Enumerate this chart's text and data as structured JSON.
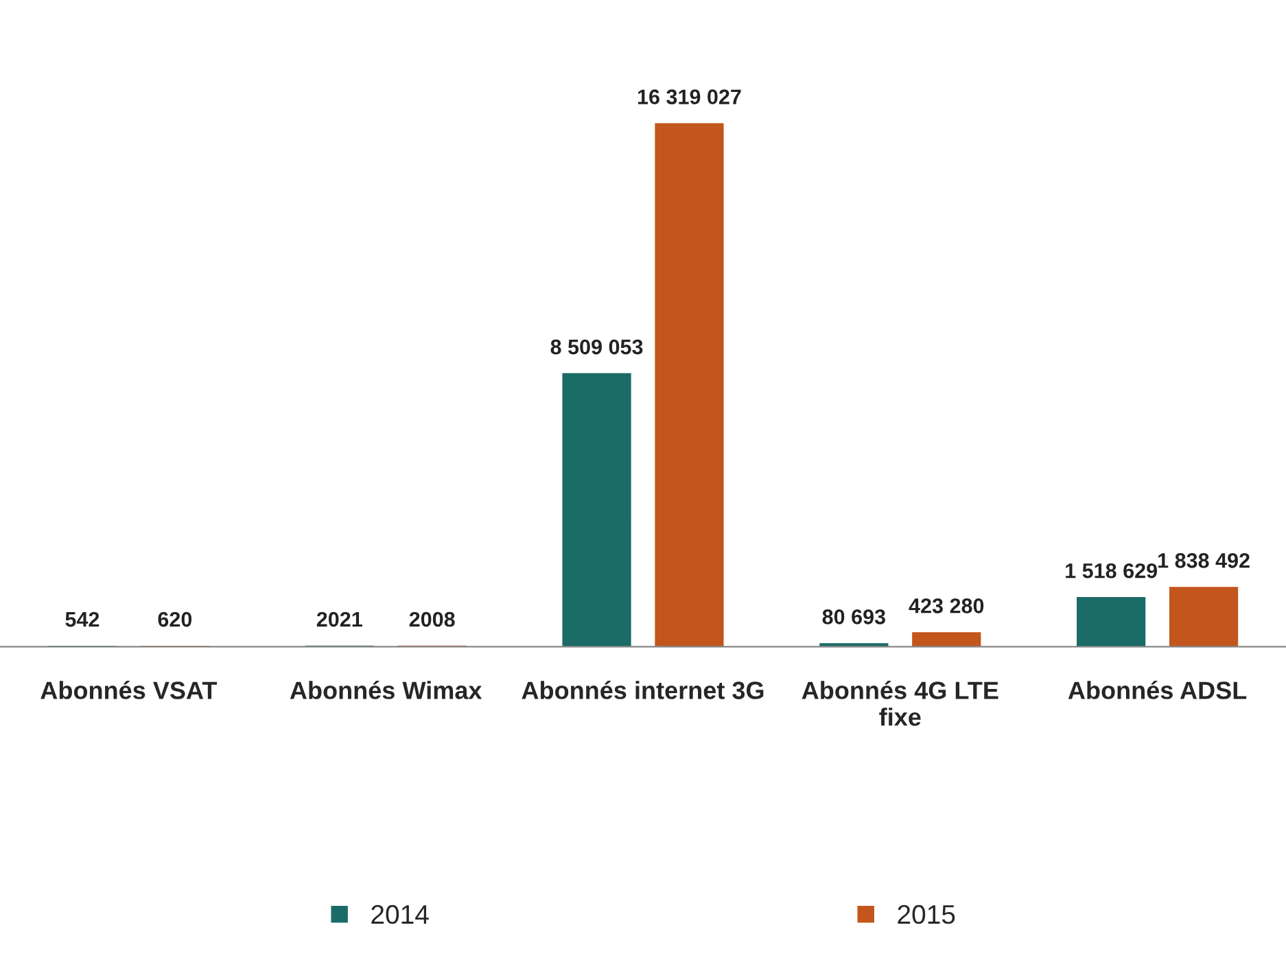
{
  "chart_data": {
    "type": "bar",
    "categories": [
      "Abonnés VSAT",
      "Abonnés Wimax",
      "Abonnés internet 3G",
      "Abonnés 4G LTE\nfixe",
      "Abonnés ADSL"
    ],
    "series": [
      {
        "name": "2014",
        "color": "#1b6b66",
        "values": [
          542,
          2021,
          8509053,
          80693,
          1518629
        ],
        "value_labels": [
          "542",
          "2021",
          "8 509 053",
          "80 693",
          "1 518 629"
        ]
      },
      {
        "name": "2015",
        "color": "#c2561c",
        "values": [
          620,
          2008,
          16319027,
          423280,
          1838492
        ],
        "value_labels": [
          "620",
          "2008",
          "16 319 027",
          "423 280",
          "1 838 492"
        ]
      }
    ],
    "legend": "bottom",
    "grid": false
  }
}
